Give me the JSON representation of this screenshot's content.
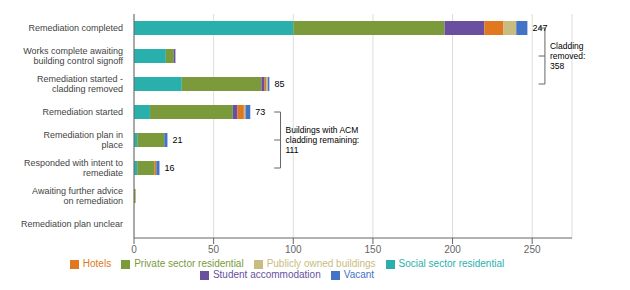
{
  "chart_data": {
    "type": "bar",
    "orientation": "horizontal",
    "stacked": true,
    "grid": true,
    "legend": "bottom",
    "categories": [
      "Remediation plan unclear",
      "Awaiting further advice\non remediation",
      "Responded with intent to\nremediate",
      "Remediation plan in\nplace",
      "Remediation started",
      "Remediation started -\ncladding removed",
      "Works complete awaiting\nbuilding control signoff",
      "Remediation completed"
    ],
    "series": [
      {
        "name": "Social sector residential",
        "color": "#2ab0ac",
        "values": [
          0,
          0,
          2,
          2,
          10,
          30,
          20,
          100
        ]
      },
      {
        "name": "Private sector residential",
        "color": "#7a9a3b",
        "values": [
          0,
          1,
          11,
          17,
          52,
          50,
          5,
          95
        ]
      },
      {
        "name": "Student accommodation",
        "color": "#6a4fa0",
        "values": [
          0,
          0,
          0,
          0,
          3,
          2,
          1,
          25
        ]
      },
      {
        "name": "Hotels",
        "color": "#e07820",
        "values": [
          0,
          0,
          1,
          0,
          4,
          1,
          0,
          12
        ]
      },
      {
        "name": "Publicly owned buildings",
        "color": "#c8bc80",
        "values": [
          0,
          0,
          0,
          0,
          1,
          1,
          0,
          8
        ]
      },
      {
        "name": "Vacant",
        "color": "#4472c4",
        "values": [
          0,
          0,
          2,
          2,
          3,
          1,
          0,
          7
        ]
      }
    ],
    "totals": [
      null,
      1,
      16,
      21,
      73,
      85,
      26,
      247
    ],
    "annotations": [
      {
        "text": "Buildings with ACM\ncladding remaining:\n111",
        "x": 92,
        "span": [
          2,
          4
        ]
      },
      {
        "text": "Cladding\nremoved:\n358",
        "x": 258,
        "span": [
          5,
          7
        ]
      }
    ],
    "xlim": [
      0,
      275
    ],
    "xticks": [
      0,
      50,
      100,
      150,
      200,
      250
    ]
  }
}
